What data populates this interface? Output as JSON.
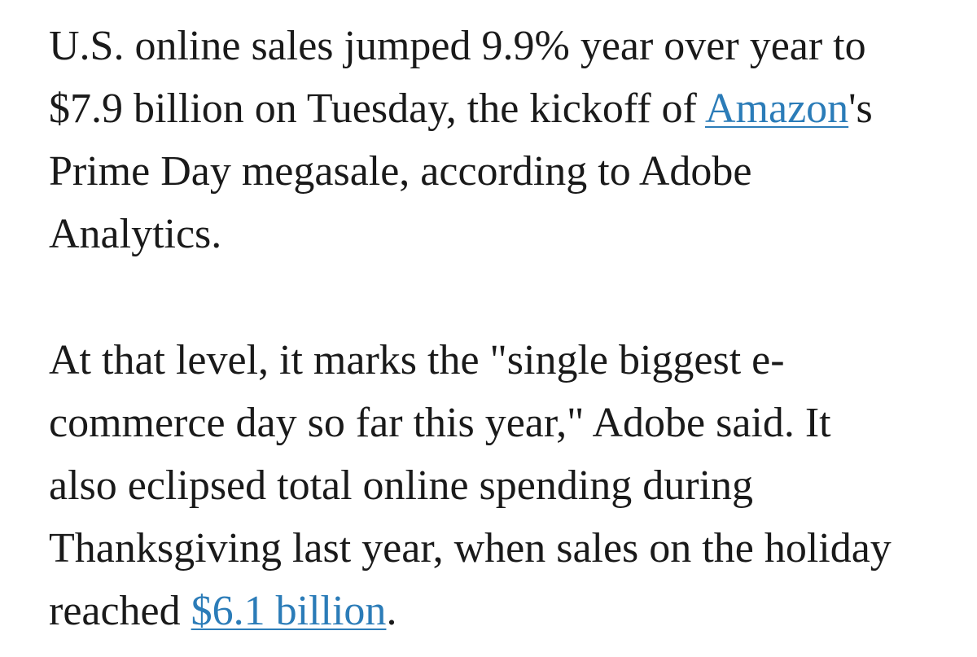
{
  "article": {
    "paragraph_1": {
      "line_1": "U.S. online sales jumped 9.9% year over year to",
      "line_2_before_link": "$7.9 billion on Tuesday, the kickoff of ",
      "line_2_link": "Amazon",
      "line_2_after_link": "'s",
      "line_3": "Prime Day megasale, according to Adobe",
      "line_4": "Analytics."
    },
    "paragraph_2": {
      "line_1": "At that level, it marks the \"single biggest e-",
      "line_2": "commerce day so far this year,\" Adobe said. It",
      "line_3": "also eclipsed total online spending during",
      "line_4": "Thanksgiving last year, when sales on the holiday",
      "line_5_before_link": "reached ",
      "line_5_link": "$6.1 billion",
      "line_5_after_link": "."
    }
  },
  "colors": {
    "text": "#1a1a1a",
    "link": "#2b7cb8",
    "background": "#ffffff"
  }
}
